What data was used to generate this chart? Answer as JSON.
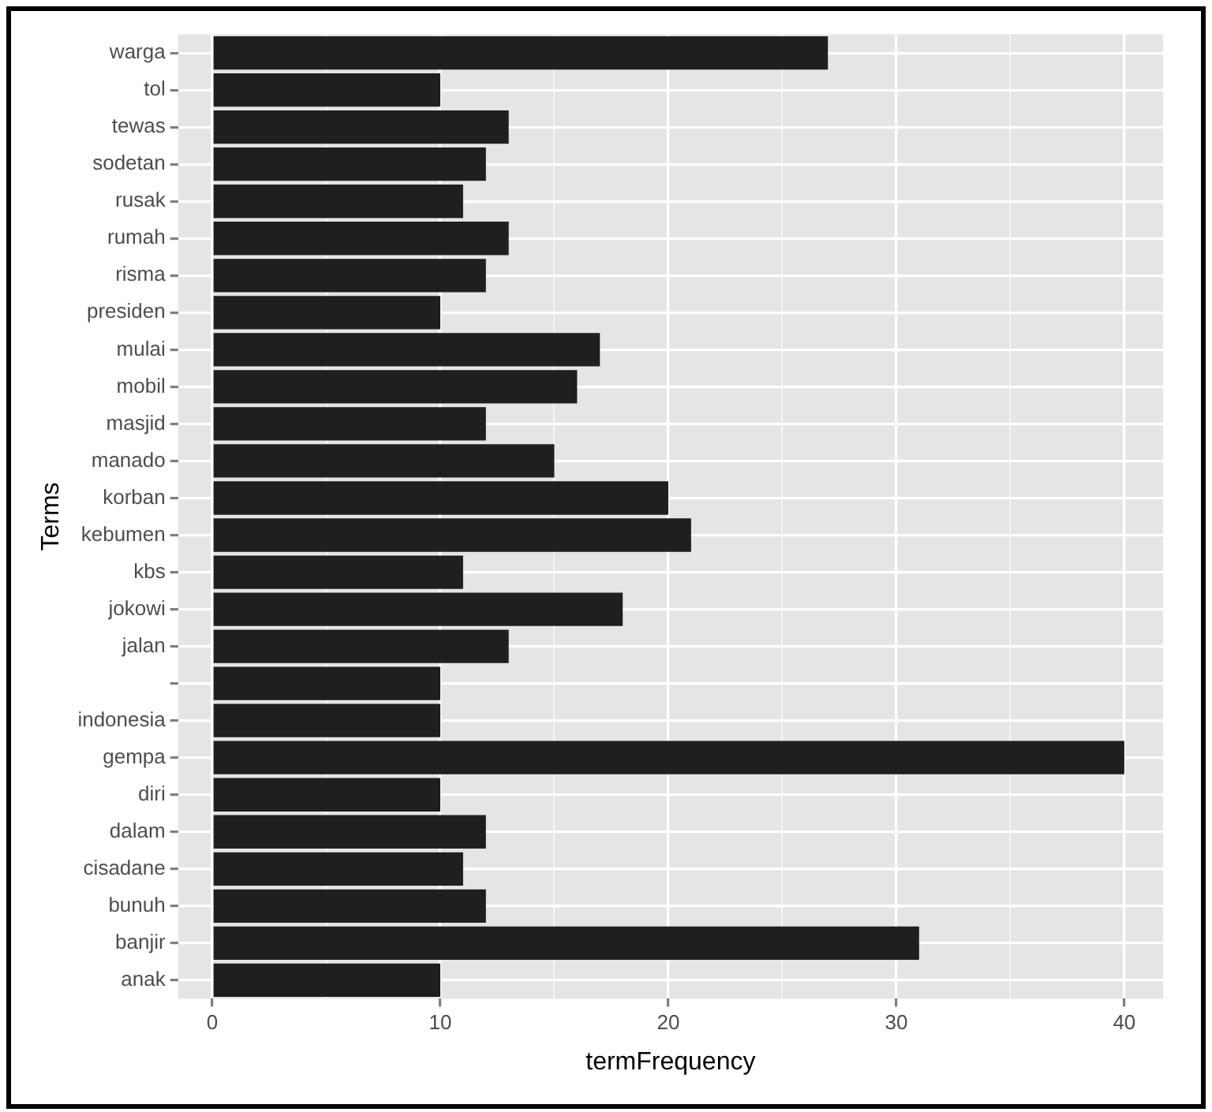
{
  "chart_data": {
    "type": "bar",
    "orientation": "horizontal",
    "xlabel": "termFrequency",
    "ylabel": "Terms",
    "categories": [
      "warga",
      "tol",
      "tewas",
      "sodetan",
      "rusak",
      "rumah",
      "risma",
      "presiden",
      "mulai",
      "mobil",
      "masjid",
      "manado",
      "korban",
      "kebumen",
      "kbs",
      "jokowi",
      "jalan",
      null,
      "indonesia",
      "gempa",
      "diri",
      "dalam",
      "cisadane",
      "bunuh",
      "banjir",
      "anak"
    ],
    "values": [
      27,
      10,
      13,
      12,
      11,
      13,
      12,
      10,
      17,
      16,
      12,
      15,
      20,
      21,
      11,
      18,
      13,
      10,
      10,
      40,
      10,
      12,
      11,
      12,
      31,
      10
    ],
    "color": "#1f1f1f",
    "xlim": [
      -1.5,
      41.7
    ],
    "xticks": [
      0,
      {
        "value": 5,
        "label": null
      },
      10,
      {
        "value": 15,
        "label": null
      },
      20,
      {
        "value": 25,
        "label": null
      },
      30,
      {
        "value": 35,
        "label": null
      },
      40
    ],
    "grid": true,
    "legend": false
  }
}
